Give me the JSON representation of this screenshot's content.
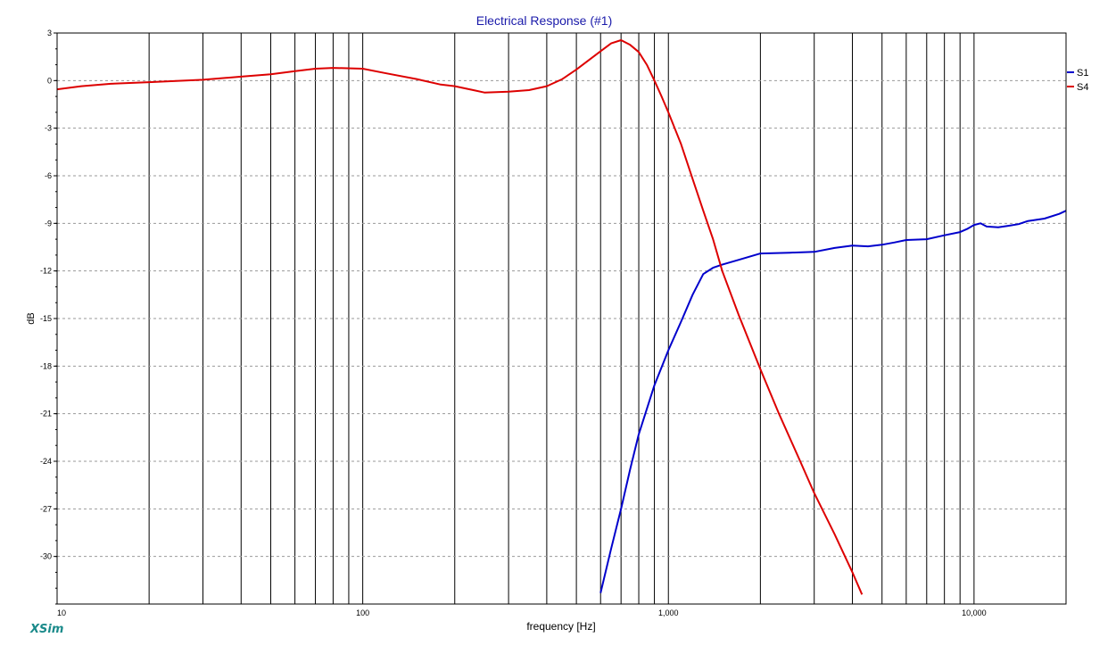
{
  "app": {
    "brand": "XSim"
  },
  "chart_data": {
    "type": "line",
    "title": "Electrical Response (#1)",
    "xlabel": "frequency [Hz]",
    "ylabel": "dB",
    "xscale": "log",
    "xlim": [
      10,
      20000
    ],
    "ylim": [
      -33,
      3
    ],
    "grid": true,
    "legend_position": "right",
    "x_tick_labels": [
      {
        "value": 10,
        "label": "10"
      },
      {
        "value": 100,
        "label": "100"
      },
      {
        "value": 1000,
        "label": "1,000"
      },
      {
        "value": 10000,
        "label": "10,000"
      }
    ],
    "y_ticks": [
      3,
      0,
      -3,
      -6,
      -9,
      -12,
      -15,
      -18,
      -21,
      -24,
      -27,
      -30
    ],
    "series": [
      {
        "name": "S1",
        "color": "#0000cc",
        "points": [
          [
            600,
            -32.3
          ],
          [
            650,
            -29.5
          ],
          [
            700,
            -27
          ],
          [
            750,
            -24.5
          ],
          [
            800,
            -22.3
          ],
          [
            900,
            -19.2
          ],
          [
            1000,
            -17
          ],
          [
            1100,
            -15.2
          ],
          [
            1200,
            -13.5
          ],
          [
            1300,
            -12.2
          ],
          [
            1400,
            -11.8
          ],
          [
            1500,
            -11.6
          ],
          [
            1700,
            -11.3
          ],
          [
            2000,
            -10.9
          ],
          [
            2500,
            -10.85
          ],
          [
            3000,
            -10.8
          ],
          [
            3500,
            -10.55
          ],
          [
            4000,
            -10.4
          ],
          [
            4500,
            -10.45
          ],
          [
            5000,
            -10.35
          ],
          [
            5500,
            -10.2
          ],
          [
            6000,
            -10.05
          ],
          [
            7000,
            -10
          ],
          [
            8000,
            -9.75
          ],
          [
            9000,
            -9.55
          ],
          [
            9500,
            -9.35
          ],
          [
            10000,
            -9.1
          ],
          [
            10500,
            -9
          ],
          [
            11000,
            -9.2
          ],
          [
            12000,
            -9.25
          ],
          [
            13000,
            -9.15
          ],
          [
            14000,
            -9.05
          ],
          [
            15000,
            -8.85
          ],
          [
            17000,
            -8.7
          ],
          [
            19000,
            -8.4
          ],
          [
            20000,
            -8.2
          ],
          [
            21000,
            -8.35
          ],
          [
            22000,
            -8.45
          ]
        ]
      },
      {
        "name": "S4",
        "color": "#dd0000",
        "points": [
          [
            10,
            -0.55
          ],
          [
            12,
            -0.35
          ],
          [
            15,
            -0.2
          ],
          [
            20,
            -0.1
          ],
          [
            30,
            0.05
          ],
          [
            40,
            0.25
          ],
          [
            50,
            0.4
          ],
          [
            60,
            0.6
          ],
          [
            70,
            0.75
          ],
          [
            80,
            0.8
          ],
          [
            100,
            0.75
          ],
          [
            120,
            0.45
          ],
          [
            150,
            0.1
          ],
          [
            180,
            -0.25
          ],
          [
            200,
            -0.35
          ],
          [
            230,
            -0.6
          ],
          [
            250,
            -0.75
          ],
          [
            300,
            -0.7
          ],
          [
            350,
            -0.6
          ],
          [
            400,
            -0.35
          ],
          [
            450,
            0.1
          ],
          [
            500,
            0.7
          ],
          [
            550,
            1.3
          ],
          [
            600,
            1.85
          ],
          [
            650,
            2.35
          ],
          [
            700,
            2.55
          ],
          [
            750,
            2.25
          ],
          [
            800,
            1.8
          ],
          [
            850,
            1
          ],
          [
            900,
            0
          ],
          [
            950,
            -1
          ],
          [
            1000,
            -2
          ],
          [
            1100,
            -4
          ],
          [
            1200,
            -6.2
          ],
          [
            1300,
            -8.2
          ],
          [
            1400,
            -10
          ],
          [
            1500,
            -12
          ],
          [
            1700,
            -14.8
          ],
          [
            2000,
            -18.2
          ],
          [
            2300,
            -21
          ],
          [
            2700,
            -24
          ],
          [
            3000,
            -26
          ],
          [
            3500,
            -28.6
          ],
          [
            4000,
            -31
          ],
          [
            4300,
            -32.4
          ]
        ]
      }
    ]
  }
}
